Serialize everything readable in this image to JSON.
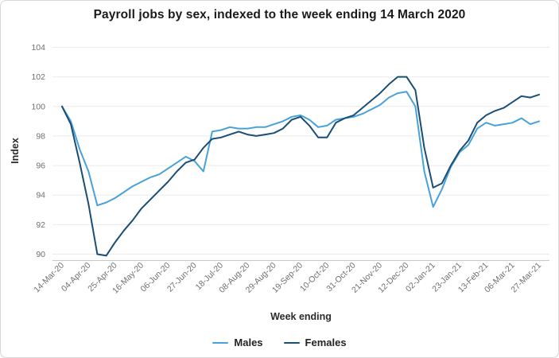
{
  "chart_data": {
    "type": "line",
    "title": "Payroll jobs by sex, indexed to the week ending 14 March 2020",
    "xlabel": "Week ending",
    "ylabel": "Index",
    "ylim": [
      90,
      104
    ],
    "ytick_step": 2,
    "yticks": [
      90,
      92,
      94,
      96,
      98,
      100,
      102,
      104
    ],
    "grid": true,
    "legend_position": "bottom",
    "xtick_every": 3,
    "x_tick_labels_shown": [
      "14-Mar-20",
      "04-Apr-20",
      "25-Apr-20",
      "16-May-20",
      "06-Jun-20",
      "27-Jun-20",
      "18-Jul-20",
      "08-Aug-20",
      "29-Aug-20",
      "19-Sep-20",
      "10-Oct-20",
      "31-Oct-20",
      "21-Nov-20",
      "12-Dec-20",
      "02-Jan-21",
      "23-Jan-21",
      "13-Feb-21",
      "06-Mar-21",
      "27-Mar-21"
    ],
    "weeks": [
      "14-Mar-20",
      "21-Mar-20",
      "28-Mar-20",
      "04-Apr-20",
      "11-Apr-20",
      "18-Apr-20",
      "25-Apr-20",
      "02-May-20",
      "09-May-20",
      "16-May-20",
      "23-May-20",
      "30-May-20",
      "06-Jun-20",
      "13-Jun-20",
      "20-Jun-20",
      "27-Jun-20",
      "04-Jul-20",
      "11-Jul-20",
      "18-Jul-20",
      "25-Jul-20",
      "01-Aug-20",
      "08-Aug-20",
      "15-Aug-20",
      "22-Aug-20",
      "29-Aug-20",
      "05-Sep-20",
      "12-Sep-20",
      "19-Sep-20",
      "26-Sep-20",
      "03-Oct-20",
      "10-Oct-20",
      "17-Oct-20",
      "24-Oct-20",
      "31-Oct-20",
      "07-Nov-20",
      "14-Nov-20",
      "21-Nov-20",
      "28-Nov-20",
      "05-Dec-20",
      "12-Dec-20",
      "19-Dec-20",
      "26-Dec-20",
      "02-Jan-21",
      "09-Jan-21",
      "16-Jan-21",
      "23-Jan-21",
      "30-Jan-21",
      "06-Feb-21",
      "13-Feb-21",
      "20-Feb-21",
      "27-Feb-21",
      "06-Mar-21",
      "13-Mar-21",
      "20-Mar-21",
      "27-Mar-21"
    ],
    "series": [
      {
        "name": "Males",
        "color": "#48a1d8",
        "values": [
          100.0,
          99.0,
          97.1,
          95.6,
          93.3,
          93.5,
          93.8,
          94.2,
          94.6,
          94.9,
          95.2,
          95.4,
          95.8,
          96.2,
          96.6,
          96.3,
          95.6,
          98.3,
          98.4,
          98.6,
          98.5,
          98.5,
          98.6,
          98.6,
          98.8,
          99.0,
          99.3,
          99.4,
          99.1,
          98.6,
          98.7,
          99.1,
          99.2,
          99.3,
          99.5,
          99.8,
          100.1,
          100.6,
          100.9,
          101.0,
          100.0,
          95.6,
          93.2,
          94.4,
          95.9,
          96.9,
          97.4,
          98.5,
          98.9,
          98.7,
          98.8,
          98.9,
          99.2,
          98.8,
          99.0
        ]
      },
      {
        "name": "Females",
        "color": "#1a4e74",
        "values": [
          100.0,
          98.8,
          96.2,
          93.4,
          90.0,
          89.9,
          90.8,
          91.6,
          92.3,
          93.1,
          93.7,
          94.3,
          94.9,
          95.6,
          96.2,
          96.4,
          97.2,
          97.8,
          97.9,
          98.1,
          98.3,
          98.1,
          98.0,
          98.1,
          98.2,
          98.5,
          99.1,
          99.3,
          98.7,
          97.9,
          97.9,
          98.9,
          99.2,
          99.4,
          99.9,
          100.4,
          100.9,
          101.5,
          102.0,
          102.0,
          101.1,
          97.2,
          94.5,
          94.8,
          96.0,
          97.0,
          97.7,
          98.9,
          99.4,
          99.7,
          99.9,
          100.3,
          100.7,
          100.6,
          100.8
        ]
      }
    ]
  }
}
